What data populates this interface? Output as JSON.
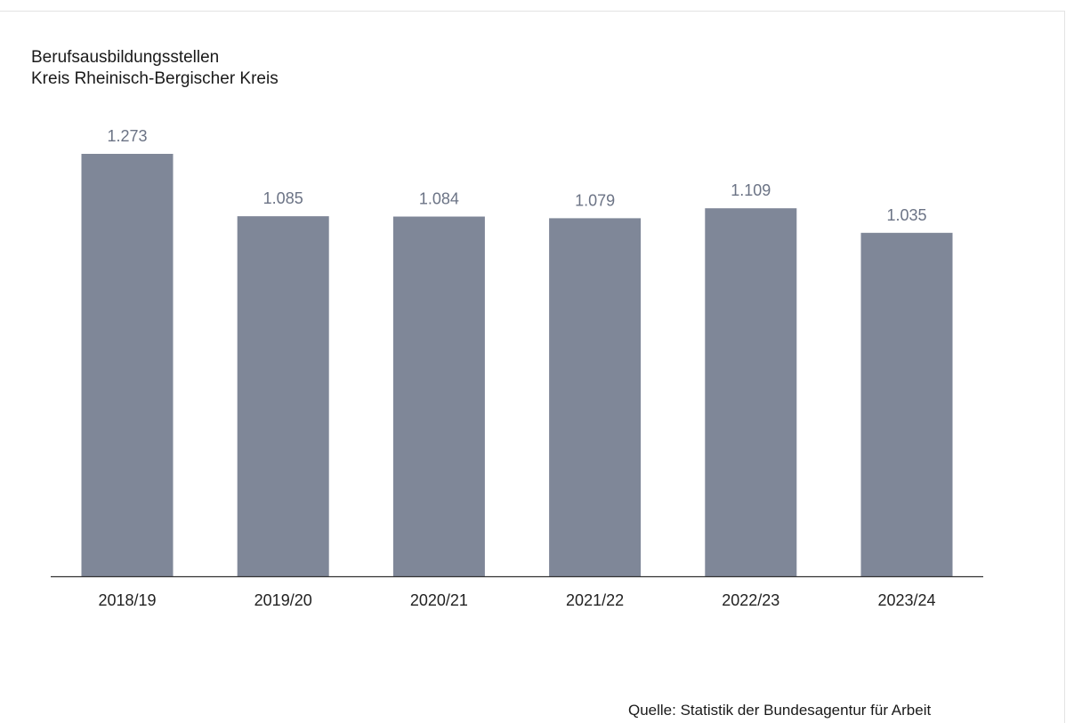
{
  "chart_data": {
    "type": "bar",
    "title": "Berufsausbildungsstellen",
    "subtitle": "Kreis Rheinisch-Bergischer Kreis",
    "categories": [
      "2018/19",
      "2019/20",
      "2020/21",
      "2021/22",
      "2022/23",
      "2023/24"
    ],
    "values": [
      1273,
      1085,
      1084,
      1079,
      1109,
      1035
    ],
    "value_labels": [
      "1.273",
      "1.085",
      "1.084",
      "1.079",
      "1.109",
      "1.035"
    ],
    "xlabel": "",
    "ylabel": "",
    "ylim": [
      0,
      1300
    ],
    "grid": false,
    "bar_color": "#7f8798",
    "label_color": "#6b7385"
  },
  "source": "Quelle:  Statistik der Bundesagentur für Arbeit"
}
